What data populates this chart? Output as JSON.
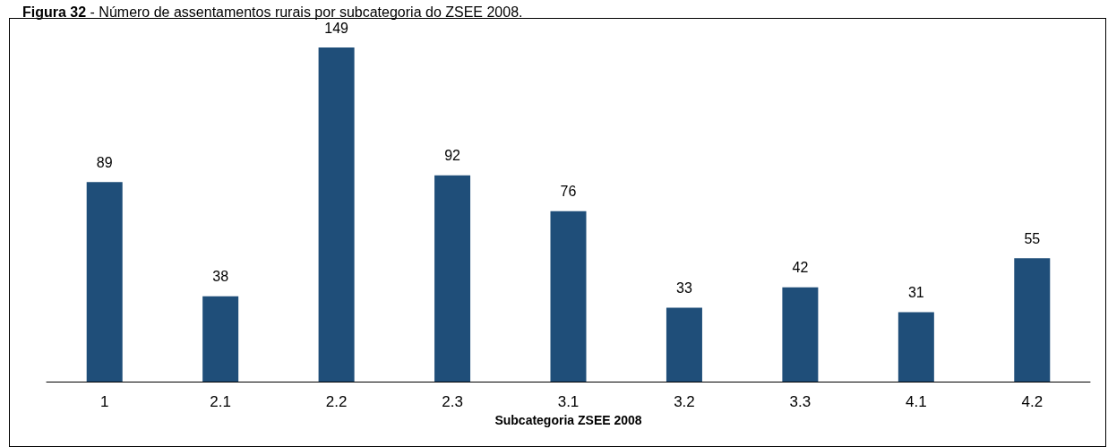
{
  "chart_data": {
    "type": "bar",
    "title": "Figura 32 - Número de assentamentos rurais por subcategoria do ZSEE 2008.",
    "xlabel": "Subcategoria ZSEE 2008",
    "categories": [
      "1",
      "2.1",
      "2.2",
      "2.3",
      "3.1",
      "3.2",
      "3.3",
      "4.1",
      "4.2"
    ],
    "values": [
      89,
      38,
      149,
      92,
      76,
      33,
      42,
      31,
      55
    ],
    "color": "#1f4e79",
    "data_labels": true,
    "grid": false
  }
}
